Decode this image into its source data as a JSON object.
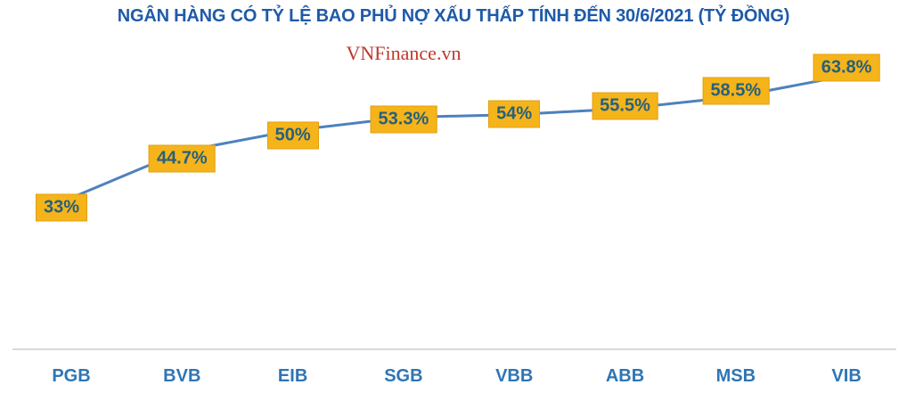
{
  "watermark": "VNFinance.vn",
  "colors": {
    "background": "#ffffff",
    "title": "#1f5aa8",
    "axis_labels": "#2e75b6",
    "line": "#4e81bd",
    "label_box_fill": "#f5b41a",
    "label_box_border": "#e2a012",
    "label_text": "#26607e",
    "watermark": "#c0392b",
    "baseline": "#d9d9d9"
  },
  "chart_data": {
    "type": "line",
    "title": "NGÂN HÀNG CÓ TỶ LỆ BAO PHỦ NỢ XẤU THẤP TÍNH ĐẾN 30/6/2021 (TỶ ĐỒNG)",
    "categories": [
      "PGB",
      "BVB",
      "EIB",
      "SGB",
      "VBB",
      "ABB",
      "MSB",
      "VIB"
    ],
    "values": [
      33,
      44.7,
      50,
      53.3,
      54,
      55.5,
      58.5,
      63.8
    ],
    "data_labels": [
      "33%",
      "44.7%",
      "50%",
      "53.3%",
      "54%",
      "55.5%",
      "58.5%",
      "63.8%"
    ],
    "unit": "%",
    "xlabel": "",
    "ylabel": "",
    "ylim": [
      30,
      70
    ],
    "grid": false,
    "legend": "none",
    "axes_hidden": true,
    "label_style": "yellow boxes centered on each data point"
  }
}
